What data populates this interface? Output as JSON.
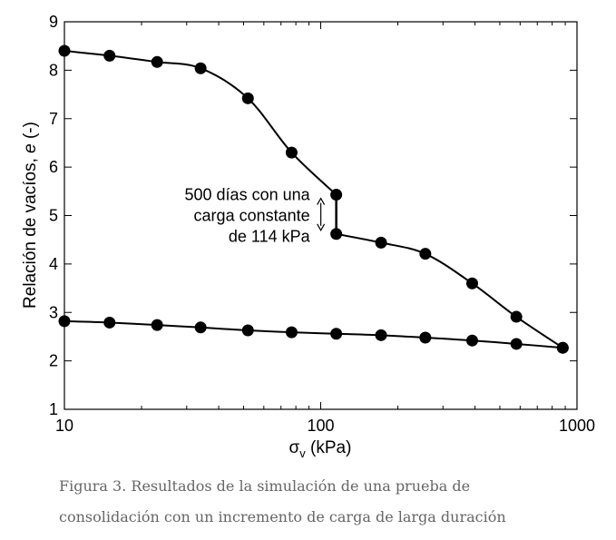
{
  "chart_data": {
    "type": "scatter",
    "x_scale": "log",
    "xlim": [
      10,
      1000
    ],
    "ylim": [
      1,
      9
    ],
    "x_ticks": [
      "10",
      "100",
      "1000"
    ],
    "y_ticks": [
      "1",
      "2",
      "3",
      "4",
      "5",
      "6",
      "7",
      "8",
      "9"
    ],
    "xlabel_main": "σ",
    "xlabel_sub": "v",
    "xlabel_unit": " (kPa)",
    "ylabel_main": "Relación de vacíos, ",
    "ylabel_italic": "e",
    "ylabel_unit": " (-)",
    "grid": false,
    "series": [
      {
        "x": [
          10,
          15,
          23,
          34,
          52,
          77,
          115
        ],
        "y": [
          8.4,
          8.3,
          8.17,
          8.04,
          7.42,
          6.3,
          5.43
        ]
      },
      {
        "x": [
          115,
          172,
          256,
          390,
          580,
          880
        ],
        "y": [
          4.62,
          4.44,
          4.21,
          3.6,
          2.91,
          2.27
        ]
      },
      {
        "x": [
          10,
          15,
          23,
          34,
          52,
          77,
          115,
          172,
          256,
          390,
          580,
          880
        ],
        "y": [
          2.82,
          2.79,
          2.74,
          2.69,
          2.63,
          2.59,
          2.56,
          2.53,
          2.48,
          2.42,
          2.35,
          2.27
        ]
      }
    ],
    "annotation": {
      "lines": [
        "500 días con una",
        "carga constante",
        "de 114 kPa"
      ],
      "x": 115,
      "y_from": 5.43,
      "y_to": 4.62
    }
  },
  "caption": {
    "line1": "Figura 3. Resultados de la simulación de una prueba de",
    "line2": "consolidación con un incremento de carga de larga duración"
  }
}
